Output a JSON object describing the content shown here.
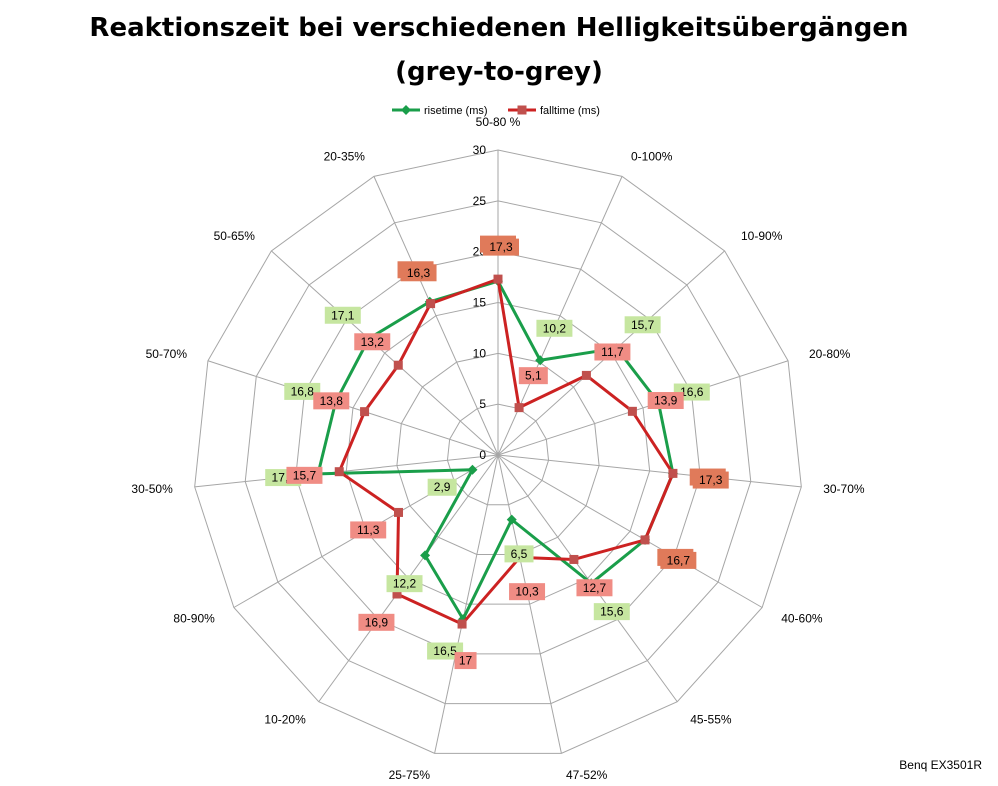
{
  "title": {
    "line1": "Reaktionszeit bei verschiedenen Helligkeitsübergängen",
    "line2": "(grey-to-grey)"
  },
  "footer": {
    "label": "Benq EX3501R"
  },
  "colors": {
    "rise_line": "#1a9e4a",
    "fall_line": "#cc2222",
    "rise_label_bg": "#c6e6a0",
    "fall_label_bg": "#f08c84",
    "overlap_label_bg": "#e07a5a",
    "grid": "#a6a6a6"
  },
  "chart_data": {
    "type": "radar",
    "categories": [
      "50-80 %",
      "0-100%",
      "10-90%",
      "20-80%",
      "30-70%",
      "40-60%",
      "45-55%",
      "47-52%",
      "25-75%",
      "10-20%",
      "80-90%",
      "30-50%",
      "50-70%",
      "50-65%",
      "20-35%"
    ],
    "series": [
      {
        "name": "risetime (ms)",
        "values": [
          17.1,
          10.2,
          15.7,
          16.6,
          17.3,
          16.7,
          15.6,
          6.5,
          16.5,
          12.2,
          2.9,
          17.8,
          16.8,
          17.1,
          16.5
        ]
      },
      {
        "name": "falltime (ms)",
        "values": [
          17.3,
          5.1,
          11.7,
          13.9,
          17.3,
          16.7,
          12.7,
          10.3,
          17,
          16.9,
          11.3,
          15.7,
          13.8,
          13.2,
          16.3
        ]
      }
    ],
    "rlim": [
      0,
      30
    ],
    "r_ticks": [
      0,
      5,
      10,
      15,
      20,
      25,
      30
    ],
    "labels_rise": [
      "17,1",
      "10,2",
      "15,7",
      "16,6",
      "17,3",
      "16,7",
      "15,6",
      "6,5",
      "16,5",
      "12,2",
      "2,9",
      "17,8",
      "16,8",
      "17,1",
      "16,5"
    ],
    "labels_fall": [
      "17,3",
      "5,1",
      "11,7",
      "13,9",
      "17,3",
      "16,7",
      "12,7",
      "10,3",
      "17",
      "16,9",
      "11,3",
      "15,7",
      "13,8",
      "13,2",
      "16,3"
    ],
    "legend_position": "top"
  }
}
